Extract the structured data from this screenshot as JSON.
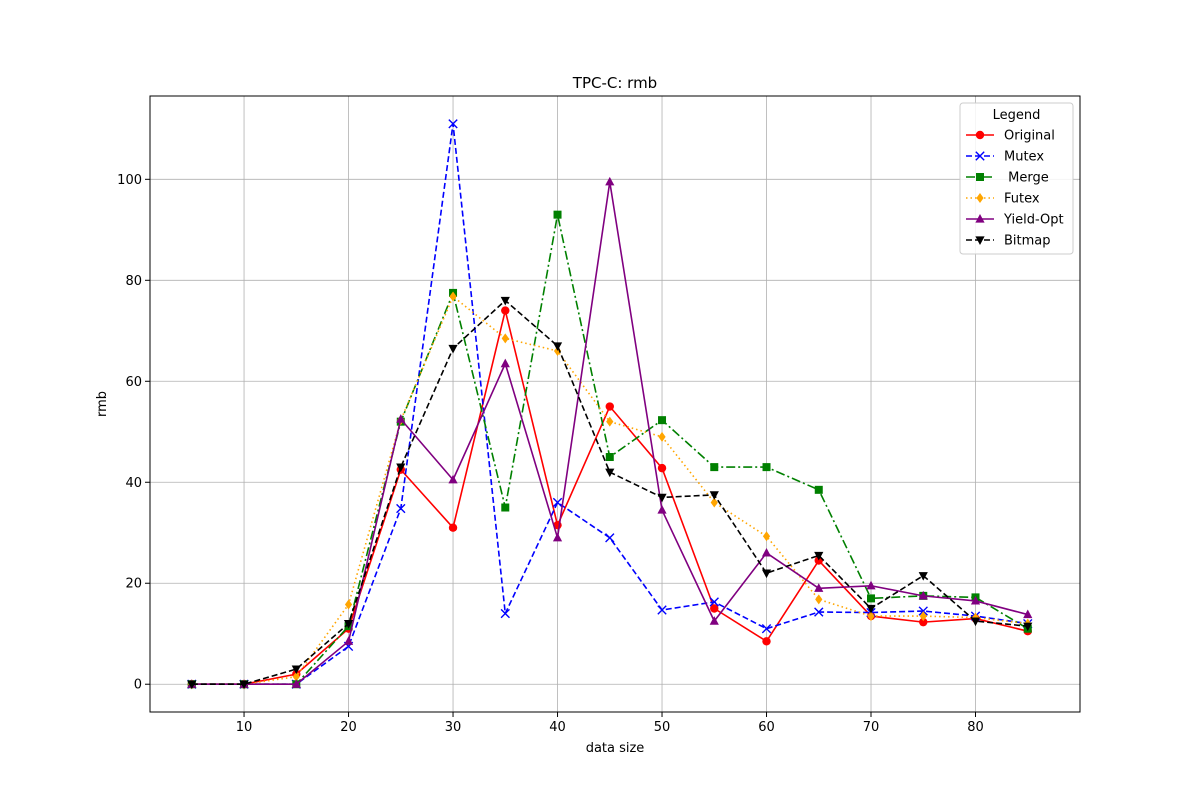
{
  "chart_data": {
    "type": "line",
    "title": "TPC-C: rmb",
    "xlabel": "data size",
    "ylabel": "rmb",
    "xlim": [
      1,
      90
    ],
    "ylim": [
      -5.5,
      116.5
    ],
    "xticks": [
      10,
      20,
      30,
      40,
      50,
      60,
      70,
      80
    ],
    "yticks": [
      0,
      20,
      40,
      60,
      80,
      100
    ],
    "grid": true,
    "legend": {
      "title": "Legend",
      "placement": "top-right"
    },
    "x": [
      5,
      10,
      15,
      20,
      25,
      30,
      35,
      40,
      45,
      50,
      55,
      60,
      65,
      70,
      75,
      80,
      85
    ],
    "series": [
      {
        "name": "Original",
        "color": "#ff0000",
        "dash": "solid",
        "marker": "circle",
        "values": [
          0,
          0,
          2.0,
          11.0,
          42.5,
          31.0,
          74.0,
          31.5,
          55.0,
          42.8,
          15.0,
          8.5,
          24.5,
          13.5,
          12.3,
          13.0,
          10.5
        ]
      },
      {
        "name": "Mutex",
        "color": "#0000ff",
        "dash": "dashed",
        "marker": "x",
        "values": [
          0,
          0,
          0,
          7.5,
          34.8,
          111.0,
          14.0,
          36.0,
          29.0,
          14.7,
          16.3,
          11.0,
          14.3,
          14.2,
          14.5,
          13.5,
          12.0
        ]
      },
      {
        "name": " Merge",
        "color": "#008000",
        "dash": "dashdot",
        "marker": "square",
        "values": [
          0,
          0,
          0,
          11.5,
          52.0,
          77.5,
          35.0,
          93.0,
          45.0,
          52.3,
          43.0,
          43.0,
          38.5,
          17.0,
          17.5,
          17.2,
          11.0
        ]
      },
      {
        "name": "Futex",
        "color": "#ffa500",
        "dash": "dotted",
        "marker": "diamond",
        "values": [
          0,
          0,
          1.5,
          15.8,
          52.3,
          76.8,
          68.5,
          66.0,
          52.0,
          49.0,
          36.0,
          29.3,
          16.8,
          13.5,
          13.5,
          13.2,
          12.0
        ]
      },
      {
        "name": "Yield-Opt",
        "color": "#800080",
        "dash": "solid",
        "marker": "triangle-up",
        "values": [
          0,
          0,
          0,
          8.5,
          52.5,
          40.5,
          63.5,
          29.0,
          99.5,
          34.5,
          12.5,
          26.0,
          19.0,
          19.5,
          17.5,
          16.5,
          13.8
        ]
      },
      {
        "name": "Bitmap",
        "color": "#000000",
        "dash": "dashed",
        "marker": "triangle-down",
        "values": [
          0,
          0,
          3.0,
          12.0,
          43.0,
          66.5,
          76.0,
          67.0,
          42.0,
          37.0,
          37.5,
          22.0,
          25.5,
          15.0,
          21.5,
          12.5,
          11.5
        ]
      }
    ]
  }
}
